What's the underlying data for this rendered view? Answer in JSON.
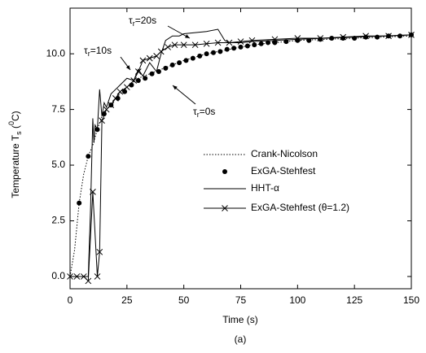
{
  "chart_data": {
    "type": "line",
    "x_label": "Time (s)",
    "y_label": [
      "Temperature T",
      "s",
      " (",
      "0",
      "C)"
    ],
    "caption": "(a)",
    "xlim": [
      0,
      150
    ],
    "ylim": [
      -0.55,
      12.05
    ],
    "xticks": [
      0,
      25,
      50,
      75,
      100,
      125,
      150
    ],
    "yticks": [
      {
        "value": 0,
        "label": "0.0"
      },
      {
        "value": 2.5,
        "label": "2.5"
      },
      {
        "value": 5,
        "label": "5.0"
      },
      {
        "value": 7.5,
        "label": "7.5"
      },
      {
        "value": 10,
        "label": "10.0"
      }
    ],
    "legend": "right",
    "annotations": [
      [
        "τ",
        "r",
        "=20s"
      ],
      [
        "τ",
        "r",
        "=10s"
      ],
      [
        "τ",
        "r",
        "=0s"
      ]
    ],
    "series": [
      {
        "name": "Crank-Nicolson",
        "color": "#000000",
        "line_style": "dotted",
        "marker": "none",
        "x": [
          0,
          2,
          4,
          6,
          8,
          10,
          12,
          14,
          16,
          20,
          25,
          30,
          35,
          40,
          50,
          60,
          70,
          80,
          100,
          125,
          150
        ],
        "values": [
          0,
          1.2,
          3.3,
          4.6,
          5.4,
          5.9,
          6.6,
          7.2,
          7.5,
          8.0,
          8.5,
          8.9,
          9.1,
          9.3,
          9.7,
          10.0,
          10.2,
          10.4,
          10.6,
          10.7,
          10.8
        ]
      },
      {
        "name": "ExGA-Stehfest",
        "color": "#000000",
        "line_style": "none",
        "marker": "dot",
        "x": [
          4,
          8,
          12,
          15,
          18,
          21,
          24,
          27,
          30,
          33,
          36,
          39,
          42,
          45,
          48,
          51,
          54,
          57,
          60,
          63,
          66,
          69,
          72,
          75,
          78,
          81,
          84,
          87,
          90,
          95,
          100,
          105,
          110,
          115,
          120,
          125,
          130,
          135,
          140,
          145,
          150
        ],
        "values": [
          3.3,
          5.4,
          6.6,
          7.3,
          7.7,
          8.0,
          8.3,
          8.6,
          8.8,
          8.9,
          9.1,
          9.2,
          9.35,
          9.5,
          9.6,
          9.7,
          9.8,
          9.9,
          10.0,
          10.05,
          10.1,
          10.2,
          10.25,
          10.3,
          10.35,
          10.4,
          10.45,
          10.5,
          10.5,
          10.55,
          10.6,
          10.6,
          10.65,
          10.7,
          10.7,
          10.7,
          10.75,
          10.75,
          10.8,
          10.8,
          10.85
        ]
      },
      {
        "name": "HHT-α",
        "color": "#000000",
        "line_style": "solid",
        "marker": "none",
        "x": [
          0,
          8,
          9,
          10,
          10.5,
          11,
          12,
          13,
          14,
          15,
          16,
          18,
          20,
          22,
          25,
          28,
          30,
          32,
          35,
          38,
          40,
          42,
          45,
          48,
          50,
          55,
          60,
          65,
          68,
          70,
          75,
          80,
          90,
          100,
          125,
          150
        ],
        "values": [
          0,
          0,
          3,
          7.1,
          6,
          6.8,
          6.6,
          8.4,
          7.2,
          7.8,
          7.6,
          8.2,
          8.4,
          8.6,
          8.9,
          8.8,
          9.3,
          9.0,
          9.6,
          9.2,
          10.0,
          10.6,
          10.8,
          10.8,
          10.9,
          10.95,
          11.0,
          11.1,
          10.6,
          10.5,
          10.5,
          10.55,
          10.6,
          10.65,
          10.75,
          10.85
        ]
      },
      {
        "name": "ExGA-Stehfest (θ=1.2)",
        "color": "#000000",
        "line_style": "solid",
        "marker": "x",
        "x": [
          0,
          3,
          6,
          8,
          10,
          12,
          13,
          14,
          16,
          18,
          20,
          22,
          25,
          28,
          30,
          32,
          35,
          38,
          40,
          43,
          46,
          50,
          55,
          60,
          65,
          70,
          75,
          80,
          90,
          100,
          110,
          120,
          130,
          140,
          150
        ],
        "values": [
          0,
          0,
          0,
          -0.2,
          3.8,
          0,
          1.1,
          7.0,
          7.5,
          7.7,
          8.0,
          8.3,
          8.5,
          8.8,
          9.2,
          9.7,
          9.8,
          9.9,
          10.1,
          10.3,
          10.4,
          10.4,
          10.4,
          10.45,
          10.5,
          10.5,
          10.55,
          10.6,
          10.65,
          10.7,
          10.7,
          10.75,
          10.8,
          10.8,
          10.85
        ]
      }
    ]
  }
}
